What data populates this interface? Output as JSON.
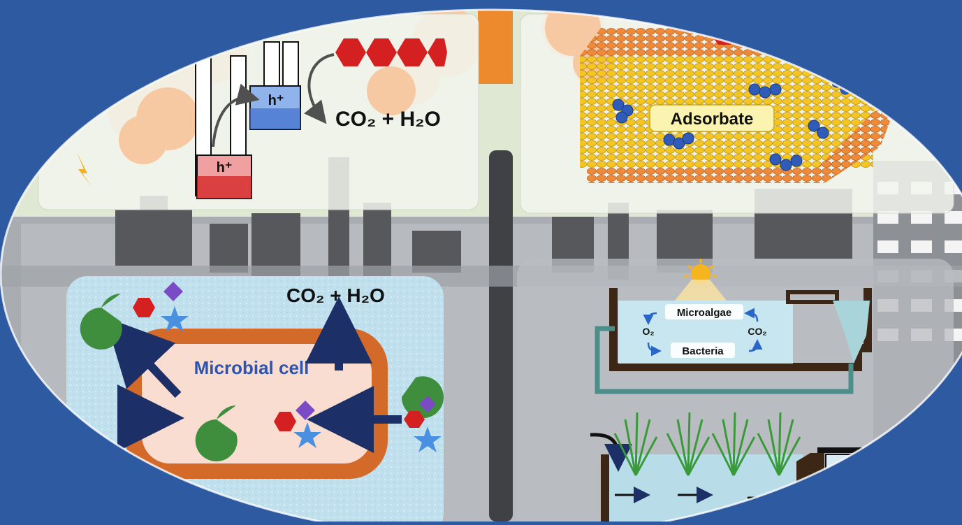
{
  "photocatalysis": {
    "hole_top": "h⁺",
    "hole_bottom": "h⁺",
    "product": "CO₂ + H₂O"
  },
  "adsorption": {
    "label": "Adsorbate"
  },
  "biodegradation": {
    "cell_label": "Microbial cell",
    "product": "CO₂ + H₂O"
  },
  "algae_pond": {
    "microalgae": "Microalgae",
    "bacteria": "Bacteria",
    "o2": "O₂",
    "co2": "CO₂"
  },
  "colors": {
    "background": "#2d5aa0",
    "cell_membrane": "#d46a2a",
    "cell_interior": "#f9ddd0",
    "pacman": "#3e8e3e",
    "hexagon": "#d42020",
    "diamond": "#7a4bc4",
    "star": "#4a90e0",
    "arrow": "#1c2f66",
    "adsorbent": "#f3c623",
    "adsorbate": "#2f5cb8"
  }
}
